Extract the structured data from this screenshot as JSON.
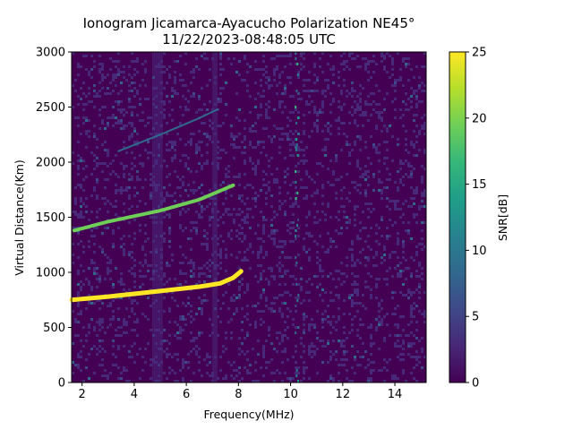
{
  "chart_data": {
    "type": "heatmap",
    "title": [
      "Ionogram Jicamarca-Ayacucho Polarization NE45°",
      "11/22/2023-08:48:05 UTC"
    ],
    "xlabel": "Frequency(MHz)",
    "ylabel": "Virtual Distance(Km)",
    "xlim": [
      1.6,
      15.2
    ],
    "ylim": [
      0,
      3000
    ],
    "xticks": [
      2,
      4,
      6,
      8,
      10,
      12,
      14
    ],
    "yticks": [
      0,
      500,
      1000,
      1500,
      2000,
      2500,
      3000
    ],
    "colorbar": {
      "label": "SNR[dB]",
      "range": [
        0,
        25
      ],
      "ticks": [
        0,
        5,
        10,
        15,
        20,
        25
      ],
      "colormap": "viridis",
      "colors": [
        "#440154",
        "#482878",
        "#3e4989",
        "#31688e",
        "#26828e",
        "#1f9e89",
        "#35b779",
        "#6ece58",
        "#b5de2b",
        "#fde725"
      ]
    },
    "background_snr_db": 1,
    "traces": [
      {
        "name": "",
        "points": [
          [
            1.6,
            750
          ],
          [
            3,
            780
          ],
          [
            5,
            830
          ],
          [
            6.5,
            870
          ],
          [
            7.3,
            900
          ],
          [
            7.8,
            950
          ],
          [
            8.1,
            1010
          ]
        ],
        "snr_db": 25
      },
      {
        "name": "",
        "points": [
          [
            1.7,
            1380
          ],
          [
            3,
            1460
          ],
          [
            5,
            1560
          ],
          [
            6.5,
            1660
          ],
          [
            7.5,
            1760
          ],
          [
            7.8,
            1790
          ]
        ],
        "snr_db": 18
      },
      {
        "name": "",
        "points": [
          [
            3.4,
            2100
          ],
          [
            5,
            2250
          ],
          [
            6.5,
            2400
          ],
          [
            7.2,
            2480
          ]
        ],
        "snr_db": 8
      }
    ],
    "bright_bands_mhz": [
      [
        4.7,
        5.1
      ],
      [
        6.8,
        7.2
      ]
    ],
    "noise_column_mhz": 10.2
  }
}
